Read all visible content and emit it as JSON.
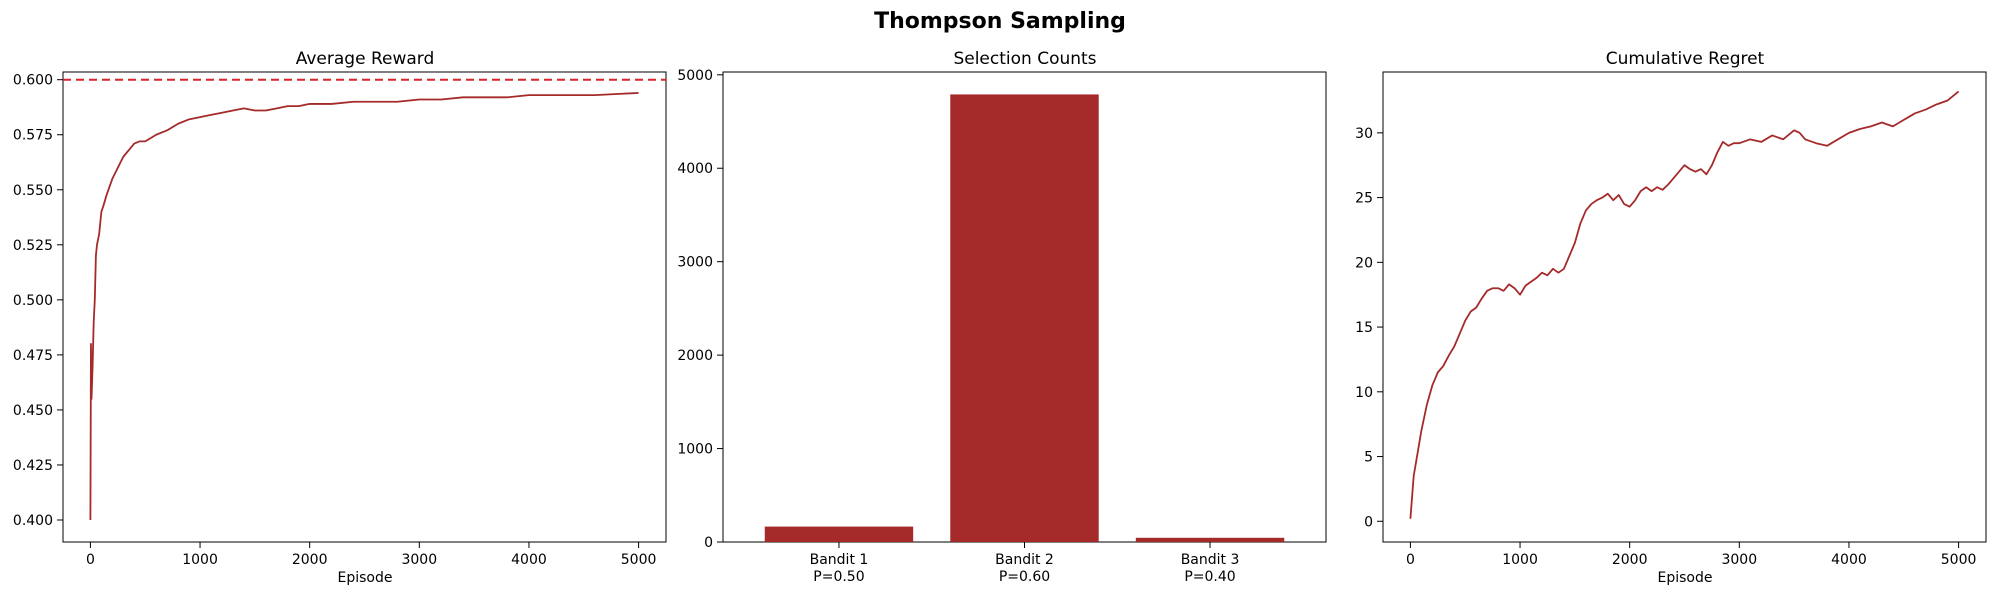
{
  "figure": {
    "title": "Thompson Sampling"
  },
  "chart_data": [
    {
      "type": "line",
      "title": "Average Reward",
      "xlabel": "Episode",
      "ylabel": "",
      "xlim": [
        -250,
        5250
      ],
      "ylim": [
        0.39,
        0.6035
      ],
      "xticks": [
        0,
        1000,
        2000,
        3000,
        4000,
        5000
      ],
      "yticks": [
        0.4,
        0.425,
        0.45,
        0.475,
        0.5,
        0.525,
        0.55,
        0.575,
        0.6
      ],
      "ytick_decimals": 3,
      "grid": false,
      "color": "#a52a2a",
      "reference_line": {
        "y": 0.6,
        "style": "dashed",
        "color": "#d62728"
      },
      "series": [
        {
          "x": [
            0,
            5,
            10,
            20,
            30,
            40,
            50,
            60,
            80,
            100,
            120,
            150,
            200,
            250,
            300,
            350,
            400,
            450,
            500,
            600,
            700,
            800,
            900,
            1000,
            1100,
            1200,
            1300,
            1400,
            1500,
            1600,
            1700,
            1800,
            1900,
            2000,
            2200,
            2400,
            2600,
            2800,
            3000,
            3200,
            3400,
            3600,
            3800,
            4000,
            4200,
            4400,
            4600,
            4800,
            5000
          ],
          "y": [
            0.4,
            0.48,
            0.455,
            0.47,
            0.49,
            0.5,
            0.52,
            0.525,
            0.53,
            0.54,
            0.543,
            0.548,
            0.555,
            0.56,
            0.565,
            0.568,
            0.571,
            0.572,
            0.572,
            0.575,
            0.577,
            0.58,
            0.582,
            0.583,
            0.584,
            0.585,
            0.586,
            0.587,
            0.586,
            0.586,
            0.587,
            0.588,
            0.588,
            0.589,
            0.589,
            0.59,
            0.59,
            0.59,
            0.591,
            0.591,
            0.592,
            0.592,
            0.592,
            0.593,
            0.593,
            0.593,
            0.593,
            0.5935,
            0.594
          ]
        }
      ]
    },
    {
      "type": "bar",
      "title": "Selection Counts",
      "xlabel": "",
      "ylabel": "",
      "categories": [
        "Bandit 1\nP=0.50",
        "Bandit 2\nP=0.60",
        "Bandit 3\nP=0.40"
      ],
      "values": [
        165,
        4790,
        45
      ],
      "ylim": [
        0,
        5030
      ],
      "yticks": [
        0,
        1000,
        2000,
        3000,
        4000,
        5000
      ],
      "grid": false,
      "color": "#a52a2a"
    },
    {
      "type": "line",
      "title": "Cumulative Regret",
      "xlabel": "Episode",
      "ylabel": "",
      "xlim": [
        -250,
        5250
      ],
      "ylim": [
        -1.6,
        34.7
      ],
      "xticks": [
        0,
        1000,
        2000,
        3000,
        4000,
        5000
      ],
      "yticks": [
        0,
        5,
        10,
        15,
        20,
        25,
        30
      ],
      "grid": false,
      "color": "#a52a2a",
      "series": [
        {
          "x": [
            0,
            30,
            60,
            100,
            150,
            200,
            250,
            300,
            350,
            400,
            450,
            500,
            550,
            600,
            650,
            700,
            750,
            800,
            850,
            900,
            950,
            1000,
            1050,
            1100,
            1150,
            1200,
            1250,
            1300,
            1350,
            1400,
            1450,
            1500,
            1550,
            1600,
            1650,
            1700,
            1750,
            1800,
            1850,
            1900,
            1950,
            2000,
            2050,
            2100,
            2150,
            2200,
            2250,
            2300,
            2350,
            2400,
            2450,
            2500,
            2550,
            2600,
            2650,
            2700,
            2750,
            2800,
            2850,
            2900,
            2950,
            3000,
            3100,
            3200,
            3300,
            3400,
            3500,
            3550,
            3600,
            3700,
            3800,
            3900,
            4000,
            4100,
            4200,
            4300,
            4400,
            4500,
            4600,
            4700,
            4800,
            4900,
            5000
          ],
          "y": [
            0.2,
            3.5,
            5.0,
            7.0,
            9.0,
            10.5,
            11.5,
            12.0,
            12.8,
            13.5,
            14.5,
            15.5,
            16.2,
            16.5,
            17.2,
            17.8,
            18.0,
            18.0,
            17.8,
            18.3,
            18.0,
            17.5,
            18.2,
            18.5,
            18.8,
            19.2,
            19.0,
            19.5,
            19.2,
            19.5,
            20.5,
            21.5,
            23.0,
            24.0,
            24.5,
            24.8,
            25.0,
            25.3,
            24.8,
            25.2,
            24.5,
            24.3,
            24.8,
            25.5,
            25.8,
            25.5,
            25.8,
            25.6,
            26.0,
            26.5,
            27.0,
            27.5,
            27.2,
            27.0,
            27.2,
            26.8,
            27.5,
            28.5,
            29.3,
            29.0,
            29.2,
            29.2,
            29.5,
            29.3,
            29.8,
            29.5,
            30.2,
            30.0,
            29.5,
            29.2,
            29.0,
            29.5,
            30.0,
            30.3,
            30.5,
            30.8,
            30.5,
            31.0,
            31.5,
            31.8,
            32.2,
            32.5,
            33.2
          ]
        }
      ]
    }
  ]
}
